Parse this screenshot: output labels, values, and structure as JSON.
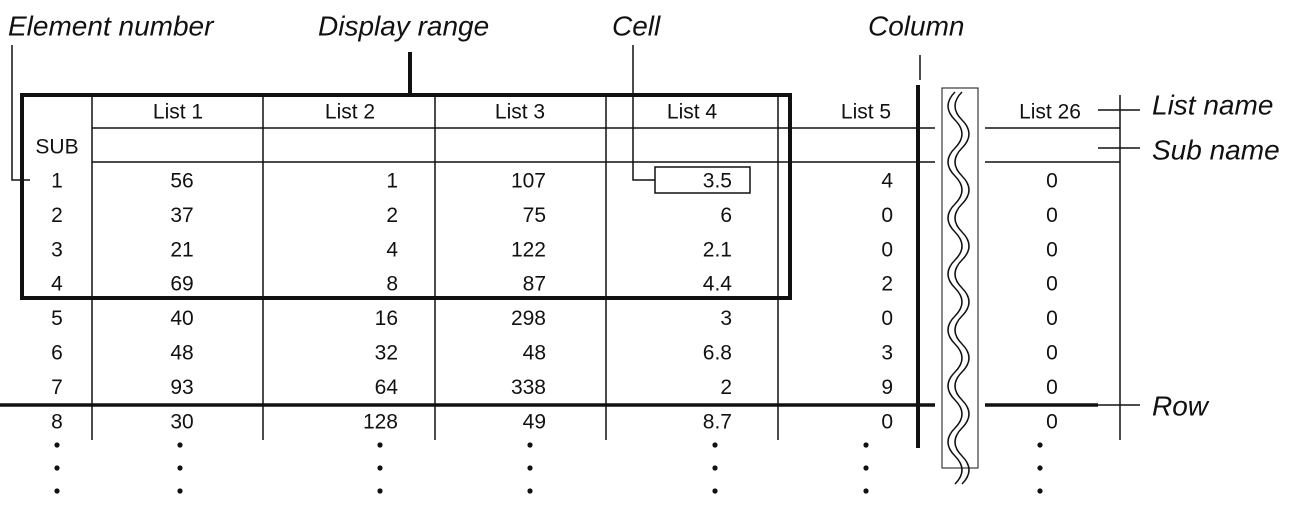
{
  "annotations": {
    "element_number": "Element number",
    "display_range": "Display range",
    "cell": "Cell",
    "column": "Column",
    "list_name": "List name",
    "sub_name": "Sub name",
    "row": "Row"
  },
  "table": {
    "sub_label": "SUB",
    "columns": [
      "List 1",
      "List 2",
      "List 3",
      "List 4",
      "List 5",
      "List 26"
    ],
    "rows": [
      [
        1,
        56,
        1,
        107,
        3.5,
        4,
        0
      ],
      [
        2,
        37,
        2,
        75,
        6,
        0,
        0
      ],
      [
        3,
        21,
        4,
        122,
        2.1,
        0,
        0
      ],
      [
        4,
        69,
        8,
        87,
        4.4,
        2,
        0
      ],
      [
        5,
        40,
        16,
        298,
        3,
        0,
        0
      ],
      [
        6,
        48,
        32,
        48,
        6.8,
        3,
        0
      ],
      [
        7,
        93,
        64,
        338,
        2,
        9,
        0
      ],
      [
        8,
        30,
        128,
        49,
        8.7,
        0,
        0
      ]
    ]
  }
}
